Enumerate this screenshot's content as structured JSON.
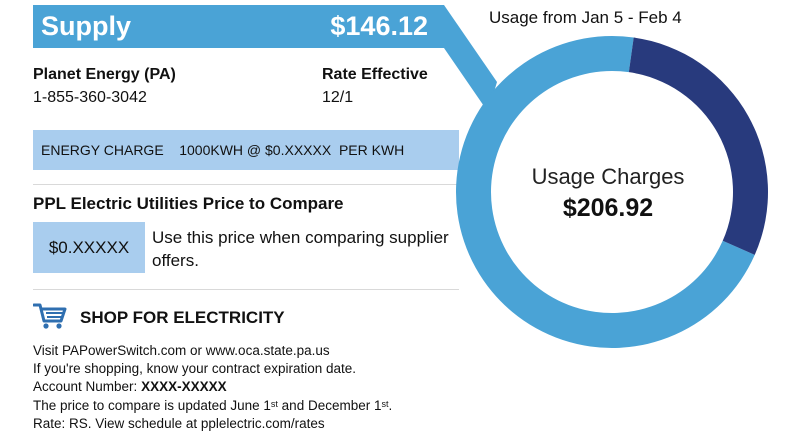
{
  "supply": {
    "title": "Supply",
    "amount": "$146.12"
  },
  "usage_period": "Usage from Jan  5 - Feb  4",
  "supplier": {
    "name": "Planet Energy (PA)",
    "phone": "1-855-360-3042",
    "rate_effective_label": "Rate Effective",
    "rate_effective_value": "12/1"
  },
  "energy_charge": "ENERGY CHARGE    1000KWH @ $0.XXXXX  PER KWH",
  "price_to_compare": {
    "heading": "PPL Electric Utilities Price to Compare",
    "value": "$0.XXXXX",
    "note": "Use this price when comparing supplier offers."
  },
  "shop": {
    "icon": "shopping-cart-icon",
    "heading": "SHOP FOR ELECTRICITY",
    "line1": "Visit PAPowerSwitch.com or www.oca.state.pa.us",
    "line2": "If you're shopping, know your contract expiration date.",
    "account_label": "Account Number:",
    "account_value": "XXXX-XXXXX",
    "line4_prefix": "The price to compare is updated June 1",
    "line4_sup1": "st",
    "line4_mid": " and December 1",
    "line4_sup2": "st",
    "line4_suffix": ".",
    "line5": "Rate: RS. View schedule at pplelectric.com/rates"
  },
  "usage_charges": {
    "label": "Usage Charges",
    "total": "$206.92",
    "supply_portion": 146.12,
    "delivery_portion": 60.8
  },
  "colors": {
    "supply_blue": "#4aa3d6",
    "dark_navy": "#283a7d",
    "light_box": "#a9cdee"
  }
}
